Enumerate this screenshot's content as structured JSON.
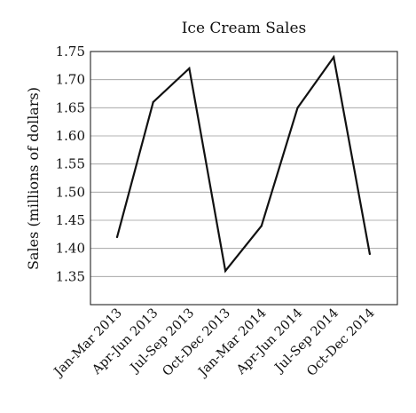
{
  "chart_data": {
    "type": "line",
    "title": "Ice Cream Sales",
    "xlabel": "",
    "ylabel": "Sales (millions of dollars)",
    "categories": [
      "Jan-Mar 2013",
      "Apr-Jun 2013",
      "Jul-Sep 2013",
      "Oct-Dec 2013",
      "Jan-Mar 2014",
      "Apr-Jun 2014",
      "Jul-Sep 2014",
      "Oct-Dec 2014"
    ],
    "values": [
      1.42,
      1.66,
      1.72,
      1.36,
      1.44,
      1.65,
      1.74,
      1.39
    ],
    "ylim": [
      1.3,
      1.75
    ],
    "yticks": [
      "1.35",
      "1.40",
      "1.45",
      "1.50",
      "1.55",
      "1.60",
      "1.65",
      "1.70",
      "1.75"
    ],
    "grid": true,
    "line_color": "#111111"
  }
}
